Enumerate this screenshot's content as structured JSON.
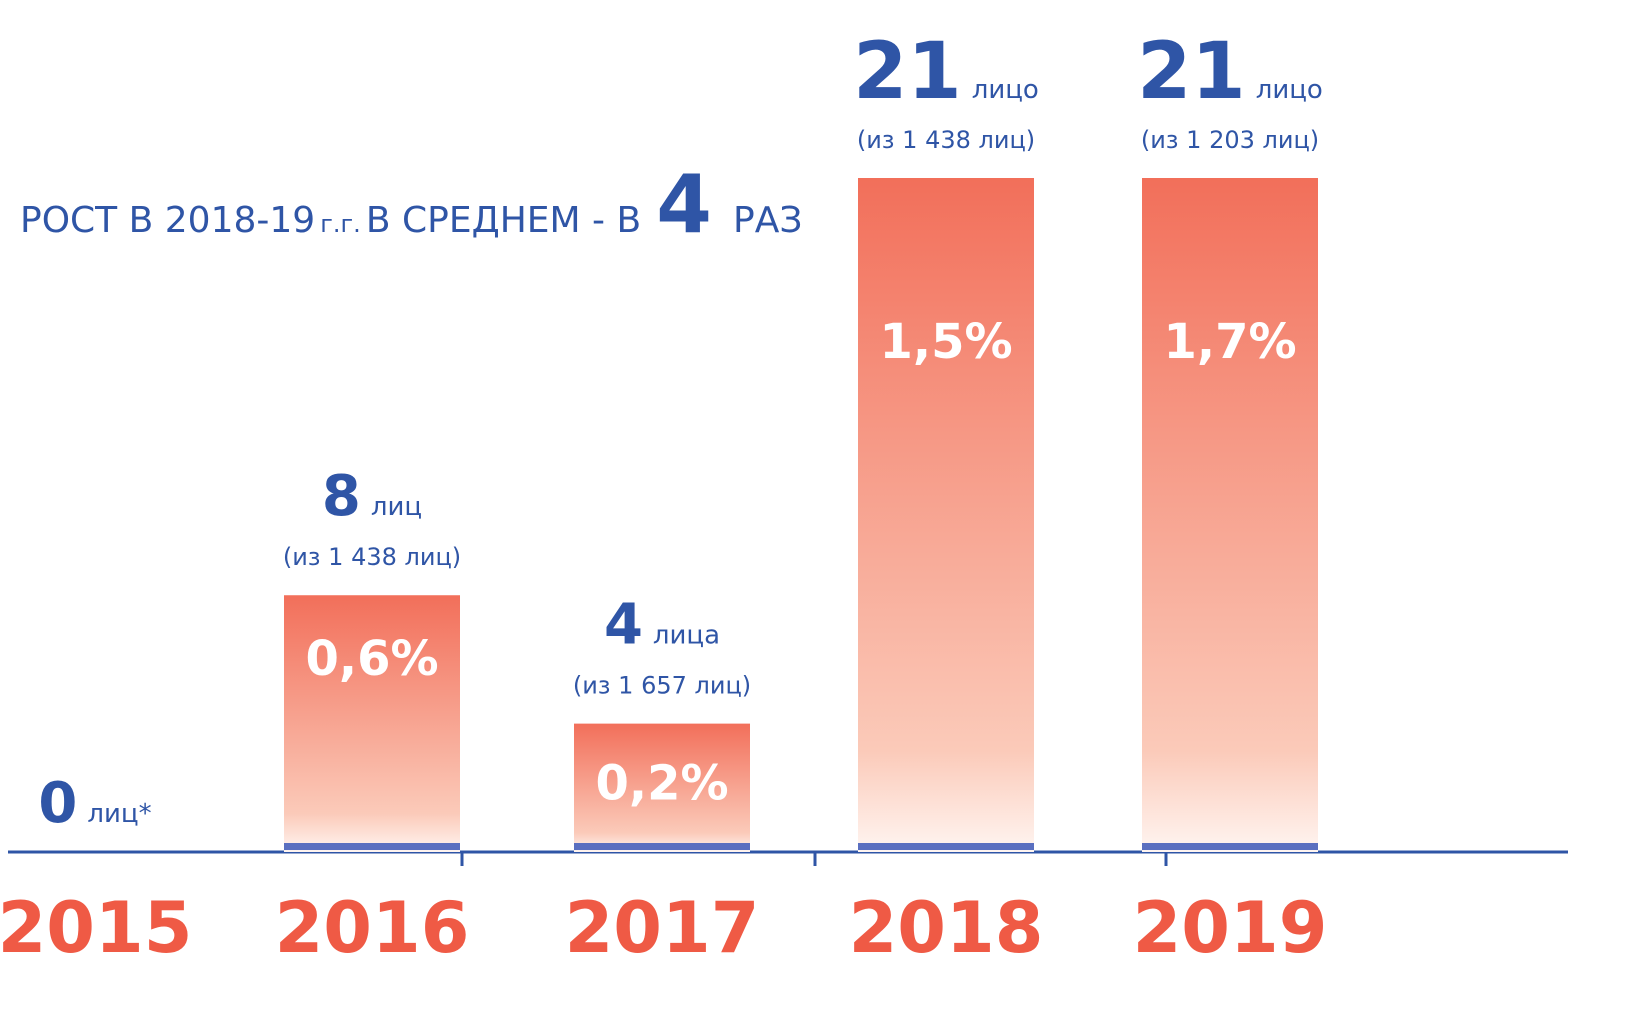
{
  "chart_data": {
    "type": "bar",
    "title_parts": [
      "РОСТ В 2018-19",
      "г.г.",
      "В СРЕДНЕМ - В",
      "4",
      "РАЗ"
    ],
    "categories": [
      "2015",
      "2016",
      "2017",
      "2018",
      "2019"
    ],
    "values": [
      0,
      8,
      4,
      21,
      21
    ],
    "units": [
      "лиц*",
      "лиц",
      "лица",
      "лицо",
      "лицо"
    ],
    "totals": [
      null,
      "(из 1 438 лиц)",
      "(из 1 657 лиц)",
      "(из 1 438 лиц)",
      "(из 1 203 лиц)"
    ],
    "percent_labels": [
      null,
      "0,6%",
      "0,2%",
      "1,5%",
      "1,7%"
    ],
    "color": "#f26f5a",
    "label_color": "#2f55a6",
    "year_color": "#ef5a45"
  }
}
